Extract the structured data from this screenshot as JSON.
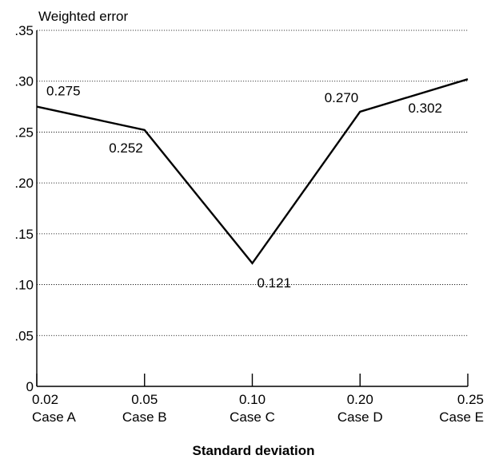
{
  "chart_data": {
    "type": "line",
    "ylabel": "Weighted error",
    "xlabel": "Standard deviation",
    "ylim": [
      0,
      0.35
    ],
    "yticks": [
      {
        "value": 0,
        "label": "0"
      },
      {
        "value": 0.05,
        "label": ".05"
      },
      {
        "value": 0.1,
        "label": ".10"
      },
      {
        "value": 0.15,
        "label": ".15"
      },
      {
        "value": 0.2,
        "label": ".20"
      },
      {
        "value": 0.25,
        "label": ".25"
      },
      {
        "value": 0.3,
        "label": ".30"
      },
      {
        "value": 0.35,
        "label": ".35"
      }
    ],
    "categories": [
      {
        "value": "0.02",
        "case": "Case A"
      },
      {
        "value": "0.05",
        "case": "Case B"
      },
      {
        "value": "0.10",
        "case": "Case C"
      },
      {
        "value": "0.20",
        "case": "Case D"
      },
      {
        "value": "0.25",
        "case": "Case E"
      }
    ],
    "series": [
      {
        "values": [
          0.275,
          0.252,
          0.121,
          0.27,
          0.302
        ],
        "data_labels": [
          "0.275",
          "0.252",
          "0.121",
          "0.270",
          "0.302"
        ]
      }
    ],
    "grid": true,
    "line_color": "#000000"
  }
}
